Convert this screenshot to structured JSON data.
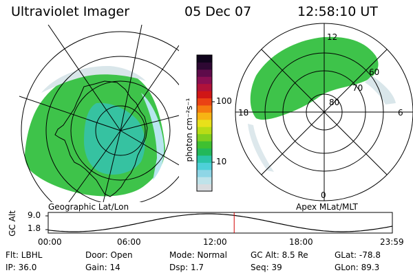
{
  "header": {
    "instrument": "Ultraviolet Imager",
    "date": "05 Dec 07",
    "time": "12:58:10 UT"
  },
  "colorbar": {
    "unit_label": "photon cm⁻²s⁻¹",
    "tick_100": "100",
    "tick_10": "10",
    "colors": [
      "#d9dcdf",
      "#bfe3ea",
      "#8fd6e6",
      "#4ed0d8",
      "#2bc4a8",
      "#22b85a",
      "#3fc030",
      "#7fcf1f",
      "#b8dc16",
      "#e8e01a",
      "#f7b414",
      "#f57b10",
      "#ea4214",
      "#d01616",
      "#b0123a",
      "#8a0f52",
      "#5e0b4a",
      "#2e0833",
      "#10041c"
    ]
  },
  "left_map": {
    "caption": "Geographic Lat/Lon"
  },
  "right_map": {
    "caption": "Apex MLat/MLT",
    "label_top": "12",
    "label_bottom": "0",
    "label_left": "18",
    "label_right": "6",
    "ring_60": "60",
    "ring_70": "70",
    "ring_80": "80"
  },
  "altitude_plot": {
    "ylabel": "GC Alt",
    "y_top": "9.0",
    "y_bottom": "1.8",
    "x_ticks": [
      "00:00",
      "06:00",
      "12:00",
      "18:00",
      "23:59"
    ],
    "current_hour": 12.97,
    "y_max": 9.0,
    "y_min": 1.8
  },
  "footer": {
    "flt": "Flt: LBHL",
    "ip": "IP: 36.0",
    "door": "Door: Open",
    "gain": "Gain: 14",
    "mode": "Mode: Normal",
    "dsp": "Dsp:    1.7",
    "gc_alt": "GC Alt: 8.5 Re",
    "seq": "Seq: 39",
    "glat": "GLat:  -78.8",
    "glon": "GLon:  89.3"
  }
}
